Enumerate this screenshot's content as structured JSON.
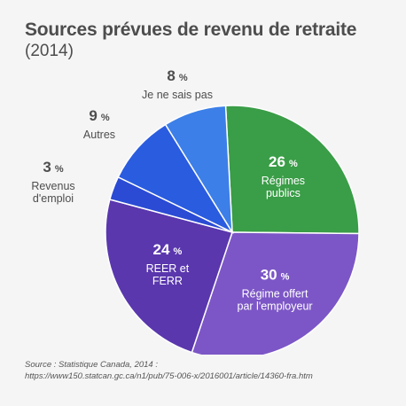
{
  "chart_data": {
    "type": "pie",
    "title": "Sources prévues de revenu de retraite",
    "subtitle": "(2014)",
    "slices": [
      {
        "label": "Régimes publics",
        "label_lines": [
          "Régimes",
          "publics"
        ],
        "value": 26,
        "pct_text": "26",
        "color": "#3a9d47",
        "label_inside": true
      },
      {
        "label": "Régime offert par l'employeur",
        "label_lines": [
          "Régime offert",
          "par l'employeur"
        ],
        "value": 30,
        "pct_text": "30",
        "color": "#7c56c6",
        "label_inside": true
      },
      {
        "label": "REER et FERR",
        "label_lines": [
          "REER et",
          "FERR"
        ],
        "value": 24,
        "pct_text": "24",
        "color": "#5a37ad",
        "label_inside": true
      },
      {
        "label": "Revenus d'emploi",
        "label_lines": [
          "Revenus",
          "d'emploi"
        ],
        "value": 3,
        "pct_text": "3",
        "color": "#2b4bd4",
        "label_inside": false
      },
      {
        "label": "Autres",
        "label_lines": [
          "Autres"
        ],
        "value": 9,
        "pct_text": "9",
        "color": "#2a5ce0",
        "label_inside": false
      },
      {
        "label": "Je ne sais pas",
        "label_lines": [
          "Je ne sais pas"
        ],
        "value": 8,
        "pct_text": "8",
        "color": "#3c7fe8",
        "label_inside": false
      }
    ],
    "percent_sign": "%"
  },
  "source": {
    "line1": "Source : Statistique Canada, 2014 :",
    "line2": "https://www150.statcan.gc.ca/n1/pub/75-006-x/2016001/article/14360-fra.htm"
  }
}
